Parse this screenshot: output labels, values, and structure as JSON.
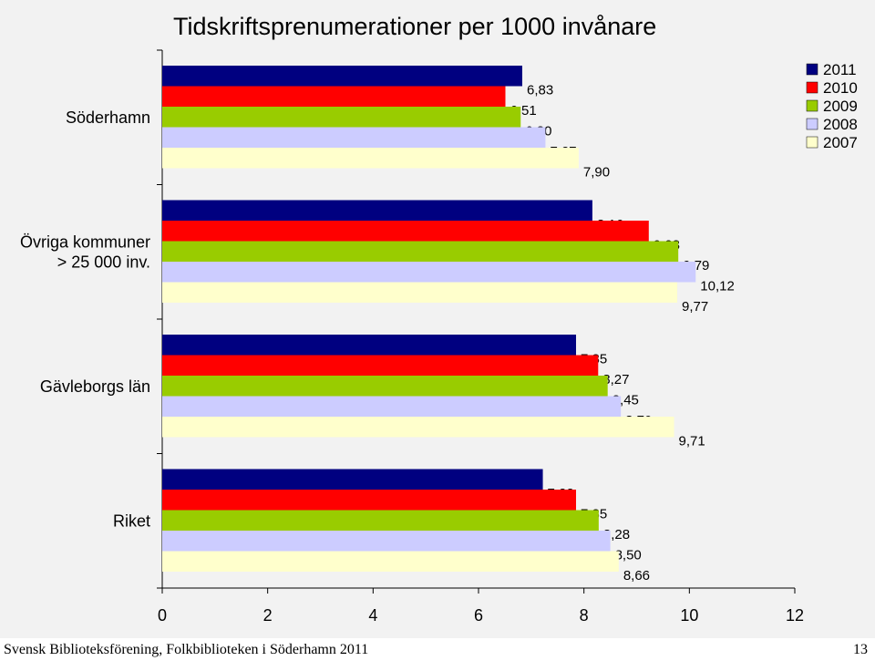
{
  "chart_data": {
    "type": "bar",
    "orientation": "horizontal",
    "title": "Tidskriftsprenumerationer per 1000 invånare",
    "categories": [
      "Söderhamn",
      "Övriga kommuner\n> 25 000 inv.",
      "Gävleborgs län",
      "Riket"
    ],
    "series": [
      {
        "name": "2011",
        "color": "#000080",
        "values": [
          6.83,
          8.16,
          7.85,
          7.22
        ],
        "labels": [
          "6,83",
          "8,16",
          "7,85",
          "7,22"
        ]
      },
      {
        "name": "2010",
        "color": "#ff0000",
        "values": [
          6.51,
          9.23,
          8.27,
          7.85
        ],
        "labels": [
          "6,51",
          "9,23",
          "8,27",
          "7,85"
        ]
      },
      {
        "name": "2009",
        "color": "#99cc00",
        "values": [
          6.8,
          9.79,
          8.45,
          8.28
        ],
        "labels": [
          "6,80",
          "9,79",
          "8,45",
          "8,28"
        ]
      },
      {
        "name": "2008",
        "color": "#ccccff",
        "values": [
          7.27,
          10.12,
          8.7,
          8.5
        ],
        "labels": [
          "7,27",
          "10,12",
          "8,70",
          "8,50"
        ]
      },
      {
        "name": "2007",
        "color": "#ffffcc",
        "values": [
          7.9,
          9.77,
          9.71,
          8.66
        ],
        "labels": [
          "7,90",
          "9,77",
          "9,71",
          "8,66"
        ]
      }
    ],
    "xlim": [
      0,
      12
    ],
    "xticks": [
      "0",
      "2",
      "4",
      "6",
      "8",
      "10",
      "12"
    ],
    "legend_position": "top-right",
    "grid": false
  },
  "footer": {
    "left": "Svensk Biblioteksförening, Folkbiblioteken i Söderhamn 2011",
    "right": "13"
  }
}
